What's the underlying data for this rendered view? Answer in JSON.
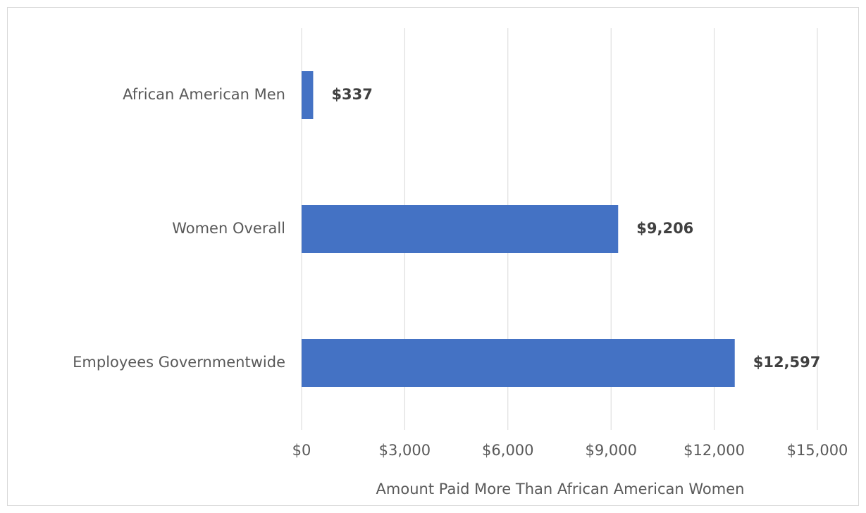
{
  "chart_data": {
    "type": "bar",
    "orientation": "horizontal",
    "categories": [
      "African American Men",
      "Women Overall",
      "Employees Governmentwide"
    ],
    "values": [
      337,
      9206,
      12597
    ],
    "value_labels": [
      "$337",
      "$9,206",
      "$12,597"
    ],
    "color": "#4472c4",
    "xlabel": "Amount Paid More Than African American Women",
    "xlim": [
      0,
      15000
    ],
    "xticks": [
      {
        "value": 0,
        "label": "$0"
      },
      {
        "value": 3000,
        "label": "$3,000"
      },
      {
        "value": 6000,
        "label": "$6,000"
      },
      {
        "value": 9000,
        "label": "$9,000"
      },
      {
        "value": 12000,
        "label": "$12,000"
      },
      {
        "value": 15000,
        "label": "$15,000"
      }
    ],
    "grid": true
  }
}
